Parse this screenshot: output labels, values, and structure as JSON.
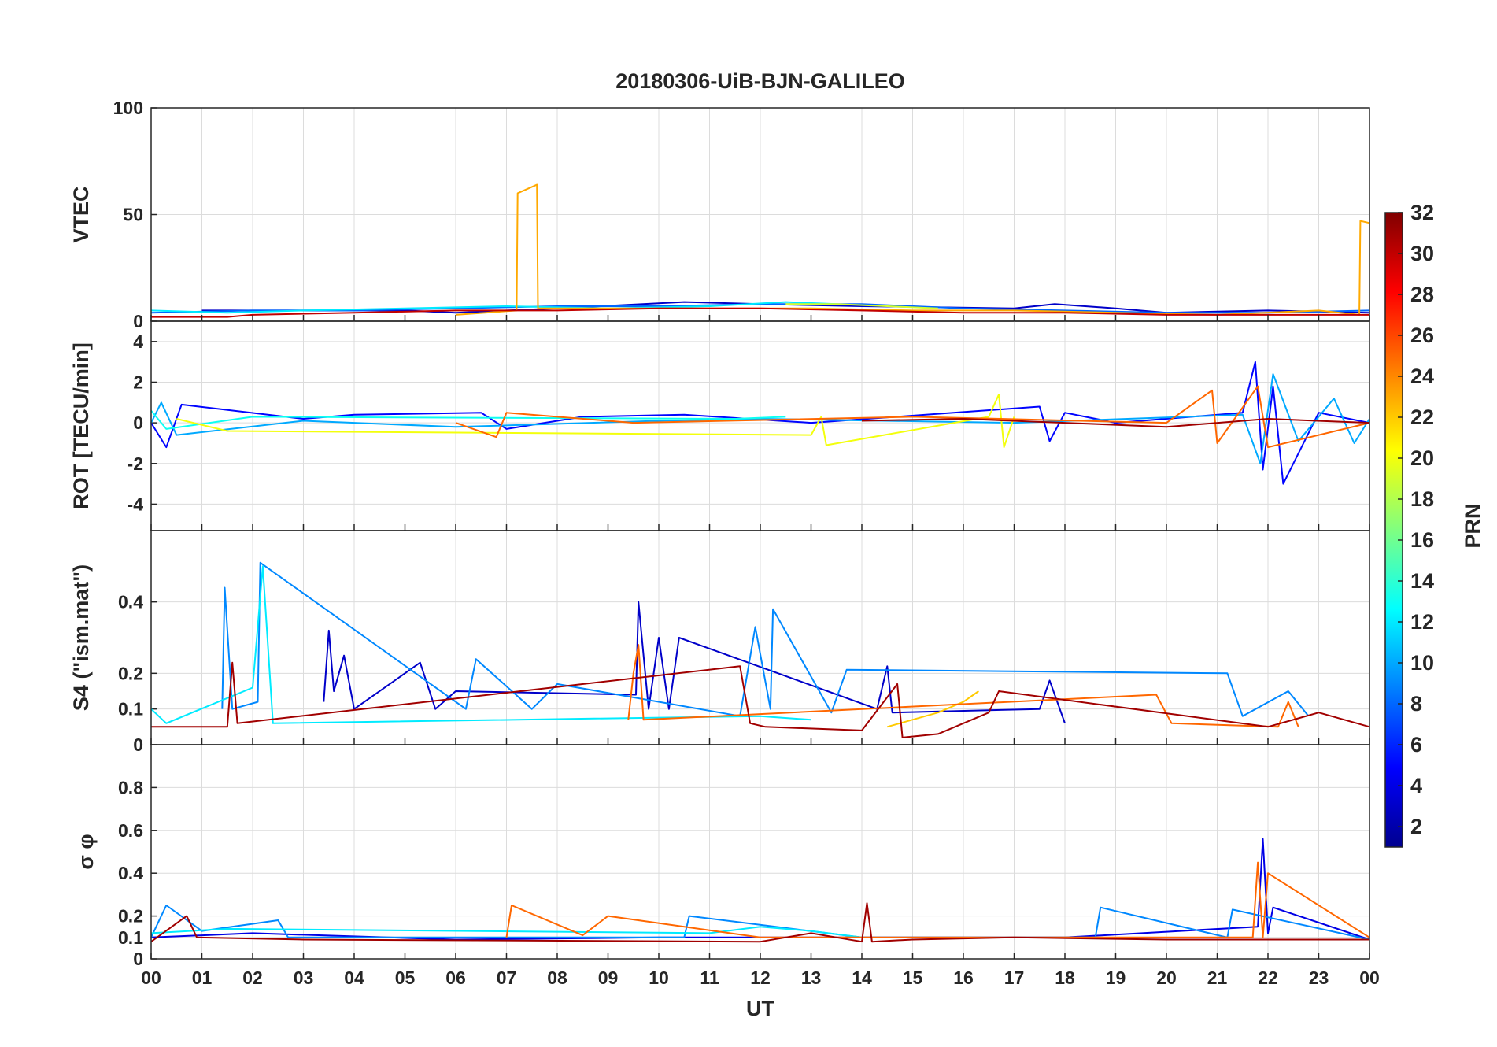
{
  "chart_data": {
    "type": "line",
    "title": "20180306-UiB-BJN-GALILEO",
    "xlabel": "UT",
    "x_tick_labels": [
      "00",
      "01",
      "02",
      "03",
      "04",
      "05",
      "06",
      "07",
      "08",
      "09",
      "10",
      "11",
      "12",
      "13",
      "14",
      "15",
      "16",
      "17",
      "18",
      "19",
      "20",
      "21",
      "22",
      "23",
      "00"
    ],
    "xlim": [
      0,
      24
    ],
    "grid": true,
    "colorbar": {
      "label": "PRN",
      "range": [
        1,
        32
      ],
      "tick_labels": [
        "2",
        "4",
        "6",
        "8",
        "10",
        "12",
        "14",
        "16",
        "18",
        "20",
        "22",
        "24",
        "26",
        "28",
        "30",
        "32"
      ],
      "colormap": "jet",
      "colormap_stops": [
        "#00008f",
        "#0000ff",
        "#0080ff",
        "#00ffff",
        "#80ff80",
        "#ffff00",
        "#ff8000",
        "#ff0000",
        "#800000"
      ]
    },
    "panels": [
      {
        "ylabel": "VTEC",
        "ylim": [
          0,
          100
        ],
        "yticks": [
          0,
          50,
          100
        ],
        "ytick_labels": [
          "0",
          "50",
          "100"
        ],
        "series": [
          {
            "prn": 3,
            "x": [
              1.0,
              3.0,
              5.0,
              6.0,
              8.0,
              10.5,
              12.0,
              14.0,
              17.0,
              17.8,
              19.0,
              20.0,
              22.0,
              24.0
            ],
            "y": [
              5,
              5,
              5,
              4,
              6,
              9,
              8,
              7,
              6,
              8,
              6,
              4,
              5,
              4
            ]
          },
          {
            "prn": 8,
            "x": [
              0.0,
              2.0,
              4.0,
              6.0,
              8.0,
              10.0,
              12.0,
              14.0,
              16.0,
              18.0,
              20.0,
              22.0,
              24.0
            ],
            "y": [
              4,
              5,
              5,
              6,
              7,
              7,
              8,
              8,
              6,
              5,
              4,
              4,
              5
            ]
          },
          {
            "prn": 12,
            "x": [
              0.0,
              1.5,
              3.0,
              5.0,
              7.0,
              9.0,
              11.0,
              12.5,
              13.5
            ],
            "y": [
              5,
              4,
              5,
              6,
              7,
              6,
              7,
              9,
              8
            ]
          },
          {
            "prn": 19,
            "x": [
              12.5,
              13.5,
              14.5,
              15.5
            ],
            "y": [
              8,
              8,
              7,
              6
            ]
          },
          {
            "prn": 23,
            "x": [
              6.0,
              7.2,
              7.22,
              7.6,
              7.62,
              9.0,
              11.0,
              13.0,
              15.0,
              17.0,
              19.0,
              21.0,
              23.0,
              23.8,
              23.82,
              24.0
            ],
            "y": [
              3,
              5,
              60,
              64,
              6,
              6,
              6,
              6,
              5,
              5,
              4,
              3,
              5,
              3,
              47,
              46
            ]
          },
          {
            "prn": 30,
            "x": [
              0.0,
              1.5,
              2.0,
              4.0,
              6.0,
              8.0,
              10.0,
              12.0,
              14.0,
              16.0,
              18.0,
              20.0,
              22.0,
              24.0
            ],
            "y": [
              2,
              2,
              3,
              4,
              5,
              5,
              6,
              6,
              5,
              4,
              4,
              3,
              3,
              3
            ]
          }
        ]
      },
      {
        "ylabel": "ROT [TECU/min]",
        "ylim": [
          -5.3,
          5
        ],
        "yticks": [
          -4,
          -2,
          0,
          2,
          4
        ],
        "ytick_labels": [
          "-4",
          "-2",
          "0",
          "2",
          "4"
        ],
        "series": [
          {
            "prn": 5,
            "x": [
              0.0,
              0.3,
              0.6,
              3.0,
              4.0,
              6.5,
              7.0,
              8.5,
              10.5,
              13.0,
              17.5,
              17.7,
              18.0,
              19.0,
              21.5,
              21.75,
              21.9,
              22.1,
              22.3,
              23.0,
              24.0
            ],
            "y": [
              0,
              -1.2,
              0.9,
              0.2,
              0.4,
              0.5,
              -0.3,
              0.3,
              0.4,
              0,
              0.8,
              -0.9,
              0.5,
              0,
              0.5,
              3.0,
              -2.3,
              1.8,
              -3.0,
              0.5,
              0
            ]
          },
          {
            "prn": 10,
            "x": [
              0.0,
              0.2,
              0.5,
              3.0,
              6.0,
              10.0,
              12.0,
              17.0,
              21.5,
              21.85,
              22.1,
              22.6,
              23.3,
              23.7,
              24.0
            ],
            "y": [
              0,
              1.0,
              -0.6,
              0.1,
              -0.2,
              0.1,
              0.2,
              0,
              0.4,
              -2.0,
              2.4,
              -0.9,
              1.2,
              -1.0,
              0.2
            ]
          },
          {
            "prn": 13,
            "x": [
              0.0,
              0.3,
              2.0,
              11.5,
              12.5
            ],
            "y": [
              0.6,
              -0.3,
              0.3,
              0.2,
              0.3
            ]
          },
          {
            "prn": 20,
            "x": [
              0.5,
              1.5,
              13.0,
              13.2,
              13.3,
              16.5,
              16.7,
              16.8,
              17.0
            ],
            "y": [
              0.2,
              -0.4,
              -0.6,
              0.3,
              -1.1,
              0.3,
              1.4,
              -1.2,
              0.3
            ]
          },
          {
            "prn": 25,
            "x": [
              6.0,
              6.8,
              7.0,
              9.5,
              15.0,
              20.0,
              20.9,
              21.0,
              21.8,
              22.0,
              24.0
            ],
            "y": [
              0,
              -0.7,
              0.5,
              0,
              0.3,
              0,
              1.6,
              -1.0,
              1.8,
              -1.2,
              0
            ]
          },
          {
            "prn": 31,
            "x": [
              14.0,
              16.0,
              18.0,
              20.0,
              22.0,
              24.0
            ],
            "y": [
              0.1,
              0.2,
              0,
              -0.2,
              0.2,
              0
            ]
          }
        ]
      },
      {
        "ylabel": "S4 (\"ism.mat\")",
        "ylim": [
          0,
          0.6
        ],
        "yticks": [
          0,
          0.1,
          0.2,
          0.4
        ],
        "ytick_labels": [
          "0",
          "0.1",
          "0.2",
          "0.4"
        ],
        "series": [
          {
            "prn": 3,
            "x": [
              3.4,
              3.5,
              3.6,
              3.8,
              4.0,
              5.3,
              5.6,
              6.0,
              9.55,
              9.6,
              9.8,
              10.0,
              10.2,
              10.4,
              14.3,
              14.5,
              14.6,
              17.5,
              17.7,
              18.0
            ],
            "y": [
              0.12,
              0.32,
              0.15,
              0.25,
              0.1,
              0.23,
              0.1,
              0.15,
              0.14,
              0.4,
              0.1,
              0.3,
              0.1,
              0.3,
              0.1,
              0.22,
              0.09,
              0.1,
              0.18,
              0.06
            ]
          },
          {
            "prn": 9,
            "x": [
              1.4,
              1.45,
              1.6,
              2.1,
              2.15,
              6.2,
              6.4,
              7.5,
              8.0,
              11.6,
              11.9,
              12.2,
              12.25,
              13.4,
              13.7,
              21.2,
              21.5,
              22.4,
              22.8
            ],
            "y": [
              0.1,
              0.44,
              0.1,
              0.12,
              0.51,
              0.1,
              0.24,
              0.1,
              0.17,
              0.08,
              0.33,
              0.1,
              0.38,
              0.09,
              0.21,
              0.2,
              0.08,
              0.15,
              0.08
            ]
          },
          {
            "prn": 12,
            "x": [
              0.0,
              0.3,
              2.0,
              2.2,
              2.4,
              12.0,
              13.0
            ],
            "y": [
              0.1,
              0.06,
              0.16,
              0.5,
              0.06,
              0.08,
              0.07
            ]
          },
          {
            "prn": 22,
            "x": [
              14.5,
              15.5,
              16.0,
              16.3
            ],
            "y": [
              0.05,
              0.09,
              0.12,
              0.15
            ]
          },
          {
            "prn": 25,
            "x": [
              9.4,
              9.5,
              9.6,
              9.7,
              19.8,
              20.1,
              22.2,
              22.4,
              22.6
            ],
            "y": [
              0.07,
              0.2,
              0.28,
              0.07,
              0.14,
              0.06,
              0.05,
              0.12,
              0.05
            ]
          },
          {
            "prn": 31,
            "x": [
              0.0,
              1.5,
              1.6,
              1.7,
              11.6,
              11.8,
              12.1,
              14.0,
              14.7,
              14.8,
              15.5,
              16.5,
              16.7,
              22.0,
              23.0,
              24.0
            ],
            "y": [
              0.05,
              0.05,
              0.23,
              0.06,
              0.22,
              0.06,
              0.05,
              0.04,
              0.17,
              0.02,
              0.03,
              0.09,
              0.15,
              0.05,
              0.09,
              0.05
            ]
          }
        ]
      },
      {
        "ylabel": "σ φ",
        "ylim": [
          0,
          1
        ],
        "yticks": [
          0,
          0.1,
          0.2,
          0.4,
          0.6,
          0.8
        ],
        "ytick_labels": [
          "0",
          "0.1",
          "0.2",
          "0.4",
          "0.6",
          "0.8"
        ],
        "series": [
          {
            "prn": 4,
            "x": [
              0.0,
              2.0,
              6.0,
              10.0,
              14.0,
              18.0,
              21.8,
              21.9,
              22.0,
              22.1,
              24.0
            ],
            "y": [
              0.1,
              0.12,
              0.09,
              0.1,
              0.1,
              0.1,
              0.15,
              0.56,
              0.12,
              0.24,
              0.09
            ]
          },
          {
            "prn": 9,
            "x": [
              0.0,
              0.3,
              1.0,
              2.5,
              2.7,
              5.0,
              10.5,
              10.6,
              14.0,
              18.6,
              18.7,
              21.2,
              21.3,
              24.0
            ],
            "y": [
              0.1,
              0.25,
              0.13,
              0.18,
              0.1,
              0.1,
              0.1,
              0.2,
              0.1,
              0.1,
              0.24,
              0.1,
              0.23,
              0.09
            ]
          },
          {
            "prn": 12,
            "x": [
              0.0,
              1.5,
              11.0,
              12.0,
              13.0,
              14.0
            ],
            "y": [
              0.12,
              0.14,
              0.12,
              0.15,
              0.13,
              0.1
            ]
          },
          {
            "prn": 25,
            "x": [
              7.0,
              7.1,
              8.5,
              9.0,
              12.0,
              21.7,
              21.8,
              21.9,
              22.0,
              24.0
            ],
            "y": [
              0.1,
              0.25,
              0.11,
              0.2,
              0.1,
              0.1,
              0.45,
              0.1,
              0.4,
              0.1
            ]
          },
          {
            "prn": 31,
            "x": [
              0.0,
              0.7,
              0.9,
              3.0,
              12.0,
              13.0,
              14.0,
              14.1,
              14.2,
              15.0,
              17.0,
              20.0,
              24.0
            ],
            "y": [
              0.08,
              0.2,
              0.1,
              0.09,
              0.08,
              0.12,
              0.08,
              0.26,
              0.08,
              0.09,
              0.1,
              0.09,
              0.09
            ]
          }
        ]
      }
    ]
  }
}
